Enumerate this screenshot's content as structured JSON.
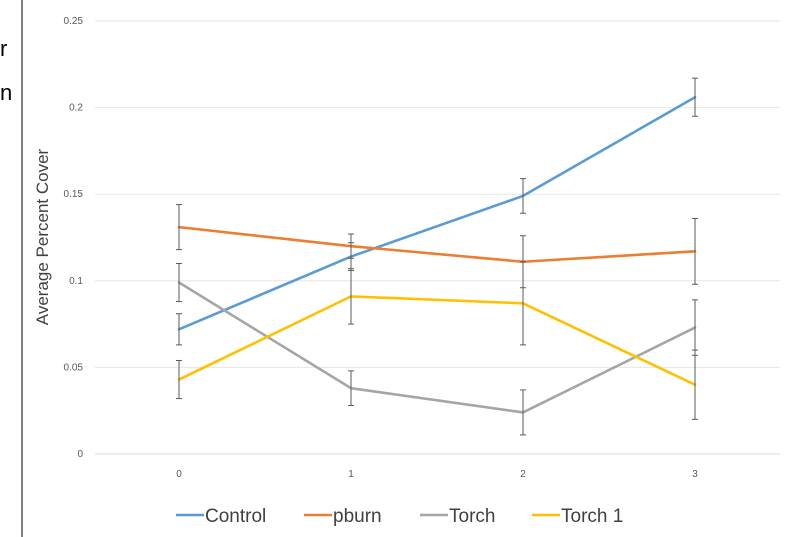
{
  "fragments": {
    "line1": "r",
    "line2": "n"
  },
  "chart_data": {
    "type": "line",
    "title": "",
    "xlabel": "",
    "ylabel": "Average Percent Cover",
    "x": [
      0,
      1,
      2,
      3
    ],
    "ylim": [
      0,
      0.25
    ],
    "y_ticks": [
      "0",
      "0.05",
      "0.1",
      "0.15",
      "0.2",
      "0.25"
    ],
    "grid": true,
    "legend": "bottom",
    "series": [
      {
        "name": "Control",
        "color": "#5B9BD5",
        "values": [
          0.072,
          0.114,
          0.149,
          0.206
        ],
        "errors": [
          0.009,
          0.008,
          0.01,
          0.011
        ]
      },
      {
        "name": "pburn",
        "color": "#ED7D31",
        "values": [
          0.131,
          0.12,
          0.111,
          0.117
        ],
        "errors": [
          0.013,
          0.007,
          0.015,
          0.019
        ]
      },
      {
        "name": "Torch",
        "color": "#A5A5A5",
        "values": [
          0.099,
          0.038,
          0.024,
          0.073
        ],
        "errors": [
          0.011,
          0.01,
          0.013,
          0.016
        ]
      },
      {
        "name": "Torch 1",
        "color": "#FFC000",
        "values": [
          0.043,
          0.091,
          0.087,
          0.04
        ],
        "errors": [
          0.011,
          0.016,
          0.024,
          0.02
        ]
      }
    ]
  }
}
